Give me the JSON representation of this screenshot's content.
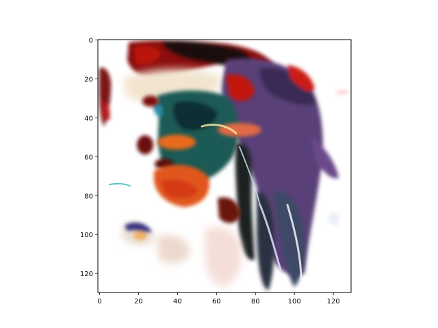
{
  "chart_data": {
    "type": "heatmap",
    "title": "",
    "xlabel": "",
    "ylabel": "",
    "xlim": [
      0,
      130
    ],
    "ylim": [
      130,
      0
    ],
    "y_inverted": true,
    "grid": false,
    "legend": "none",
    "x_ticks": [
      0,
      20,
      40,
      60,
      80,
      100,
      120
    ],
    "y_ticks": [
      0,
      20,
      40,
      60,
      80,
      100,
      120
    ],
    "x_tick_labels": [
      "0",
      "20",
      "40",
      "60",
      "80",
      "100",
      "120"
    ],
    "y_tick_labels": [
      "0",
      "20",
      "40",
      "60",
      "80",
      "100",
      "120"
    ],
    "image_description": "abstract colorful generated image (dark red, black, teal, orange, purple, white)",
    "colors": {
      "background": "#ffffff",
      "axes": "#000000",
      "dark_red": "#8b0a0a",
      "black": "#101214",
      "teal": "#1c5a55",
      "orange": "#e86a1e",
      "purple": "#5a3f78",
      "cream": "#f2e4cf"
    }
  }
}
